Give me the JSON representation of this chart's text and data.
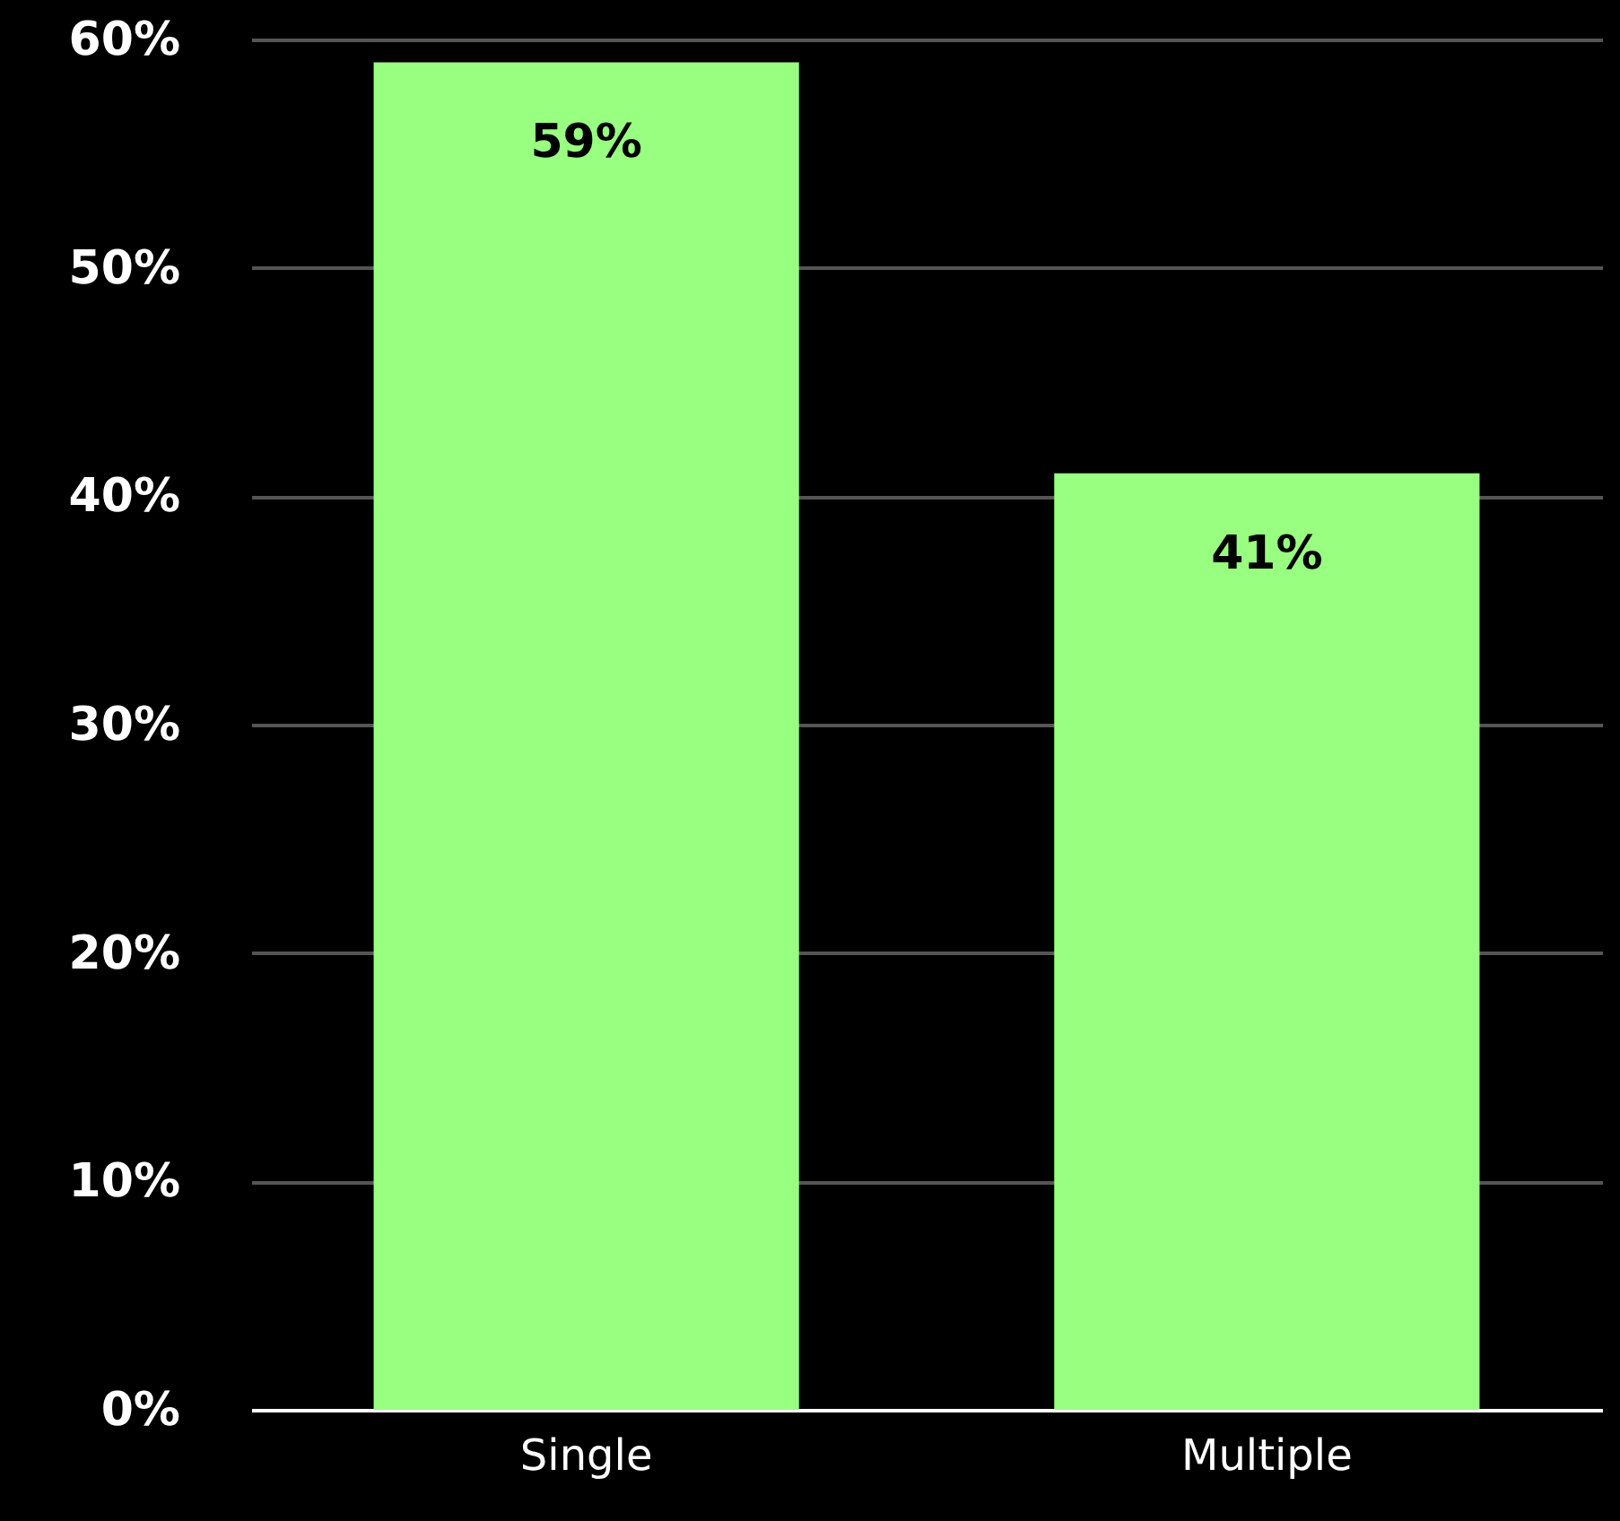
{
  "chart_data": {
    "type": "bar",
    "categories": [
      "Single",
      "Multiple"
    ],
    "values": [
      59,
      41
    ],
    "value_labels": [
      "59%",
      "41%"
    ],
    "color": "#99ff80",
    "ylim": [
      0,
      60
    ],
    "yticks": [
      {
        "value": 0,
        "label": "0%"
      },
      {
        "value": 10,
        "label": "10%"
      },
      {
        "value": 20,
        "label": "20%"
      },
      {
        "value": 30,
        "label": "30%"
      },
      {
        "value": 40,
        "label": "40%"
      },
      {
        "value": 50,
        "label": "50%"
      },
      {
        "value": 60,
        "label": "60%"
      }
    ],
    "grid": "y"
  }
}
